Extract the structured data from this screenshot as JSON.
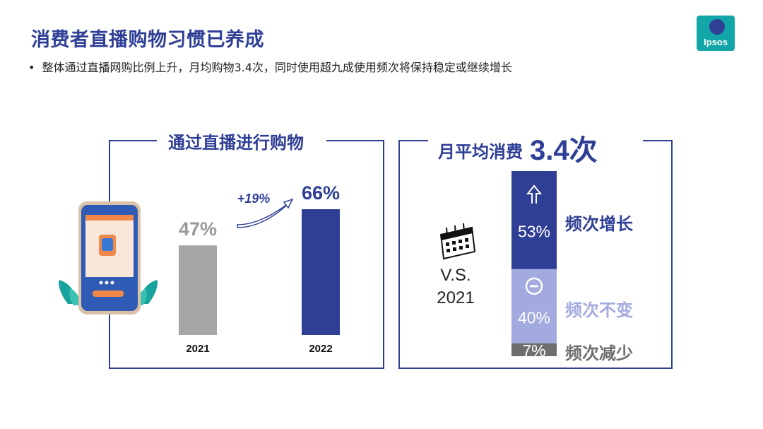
{
  "header": {
    "title": "消费者直播购物习惯已养成",
    "subtitle": "整体通过直播网购比例上升，月均购物3.4次，同时使用超九成使用频次将保持稳定或继续增长"
  },
  "logo": {
    "text": "Ipsos",
    "color": "#12a6a8"
  },
  "left_panel": {
    "title": "通过直播进行购物",
    "growth_label": "+19%"
  },
  "right_panel": {
    "title": "月平均消费",
    "title_value": "3.4次",
    "vs_line1": "V.S.",
    "vs_line2": "2021"
  },
  "chart_data": [
    {
      "type": "bar",
      "categories": [
        "2021",
        "2022"
      ],
      "values": [
        47,
        66
      ],
      "data_labels": [
        "47%",
        "66%"
      ],
      "ylim": [
        0,
        66
      ],
      "colors": [
        "#a6a6a6",
        "#2f3f95"
      ]
    },
    {
      "type": "bar",
      "stacked": true,
      "categories": [
        "频次增长",
        "频次不变",
        "频次减少"
      ],
      "values": [
        53,
        40,
        7
      ],
      "data_labels": [
        "53%",
        "40%",
        "7%"
      ],
      "colors": [
        "#2f3f95",
        "#a3aadf",
        "#6e6e6e"
      ],
      "label_colors": [
        "#2f3f95",
        "#a3aadf",
        "#6e6e6e"
      ]
    }
  ]
}
